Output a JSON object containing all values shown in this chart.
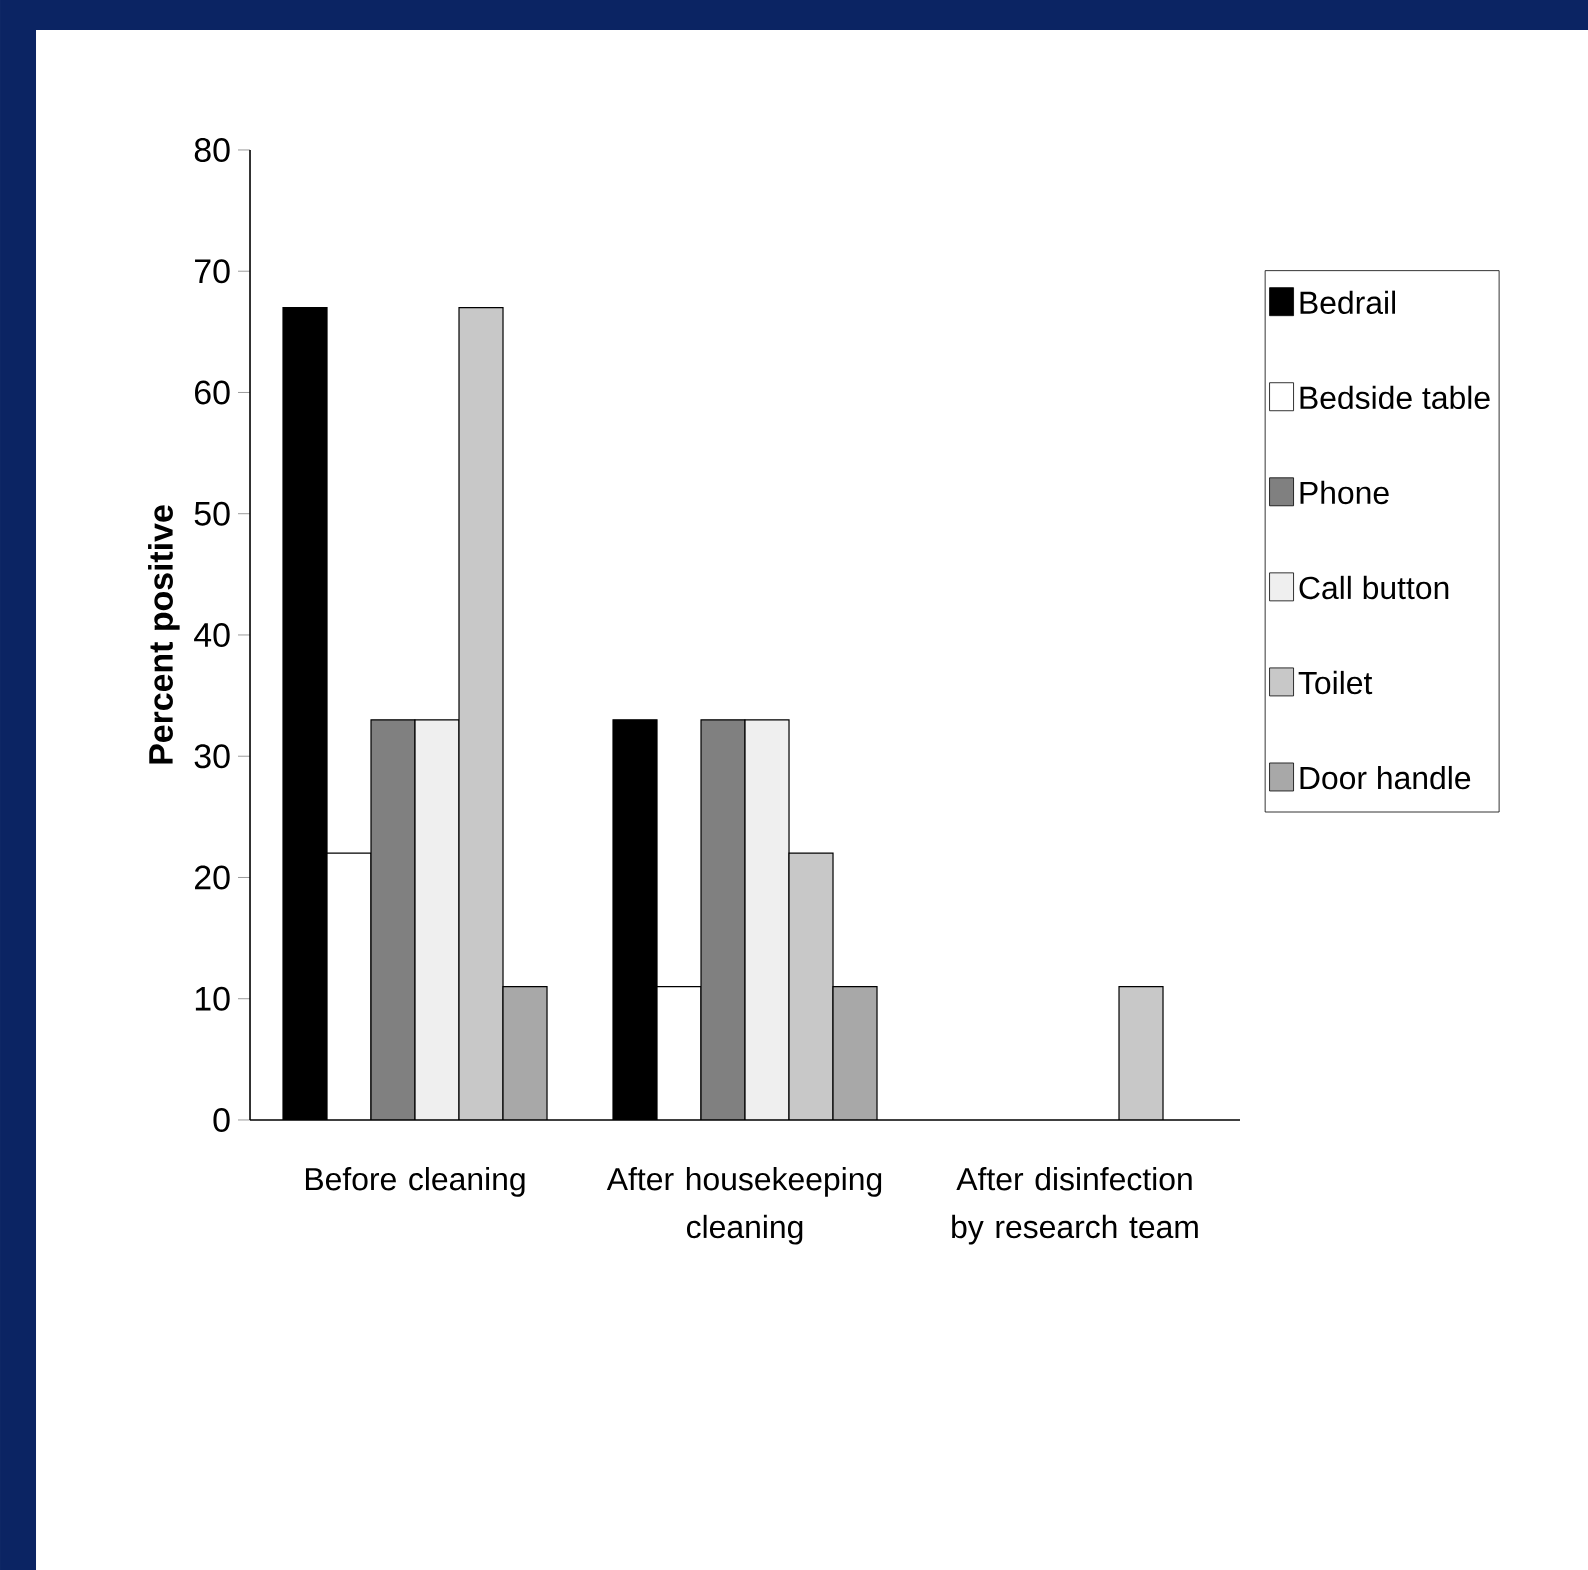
{
  "chart_data": {
    "type": "bar",
    "ylabel": "Percent positive",
    "categories": [
      "Before cleaning",
      "After housekeeping cleaning",
      "After disinfection by research team"
    ],
    "series": [
      {
        "name": "Bedrail",
        "color": "#000000",
        "values": [
          67,
          33,
          0
        ]
      },
      {
        "name": "Bedside table",
        "color": "#ffffff",
        "values": [
          22,
          11,
          0
        ]
      },
      {
        "name": "Phone",
        "color": "#808080",
        "values": [
          33,
          33,
          0
        ]
      },
      {
        "name": "Call button",
        "color": "#efefef",
        "values": [
          33,
          33,
          0
        ]
      },
      {
        "name": "Toilet",
        "color": "#c8c8c8",
        "values": [
          67,
          22,
          11
        ]
      },
      {
        "name": "Door handle",
        "color": "#a8a8a8",
        "values": [
          11,
          11,
          0
        ]
      }
    ],
    "ylim": [
      0,
      80
    ],
    "yticks": [
      0,
      10,
      20,
      30,
      40,
      50,
      60,
      70,
      80
    ],
    "grid": false,
    "legend": "right"
  }
}
